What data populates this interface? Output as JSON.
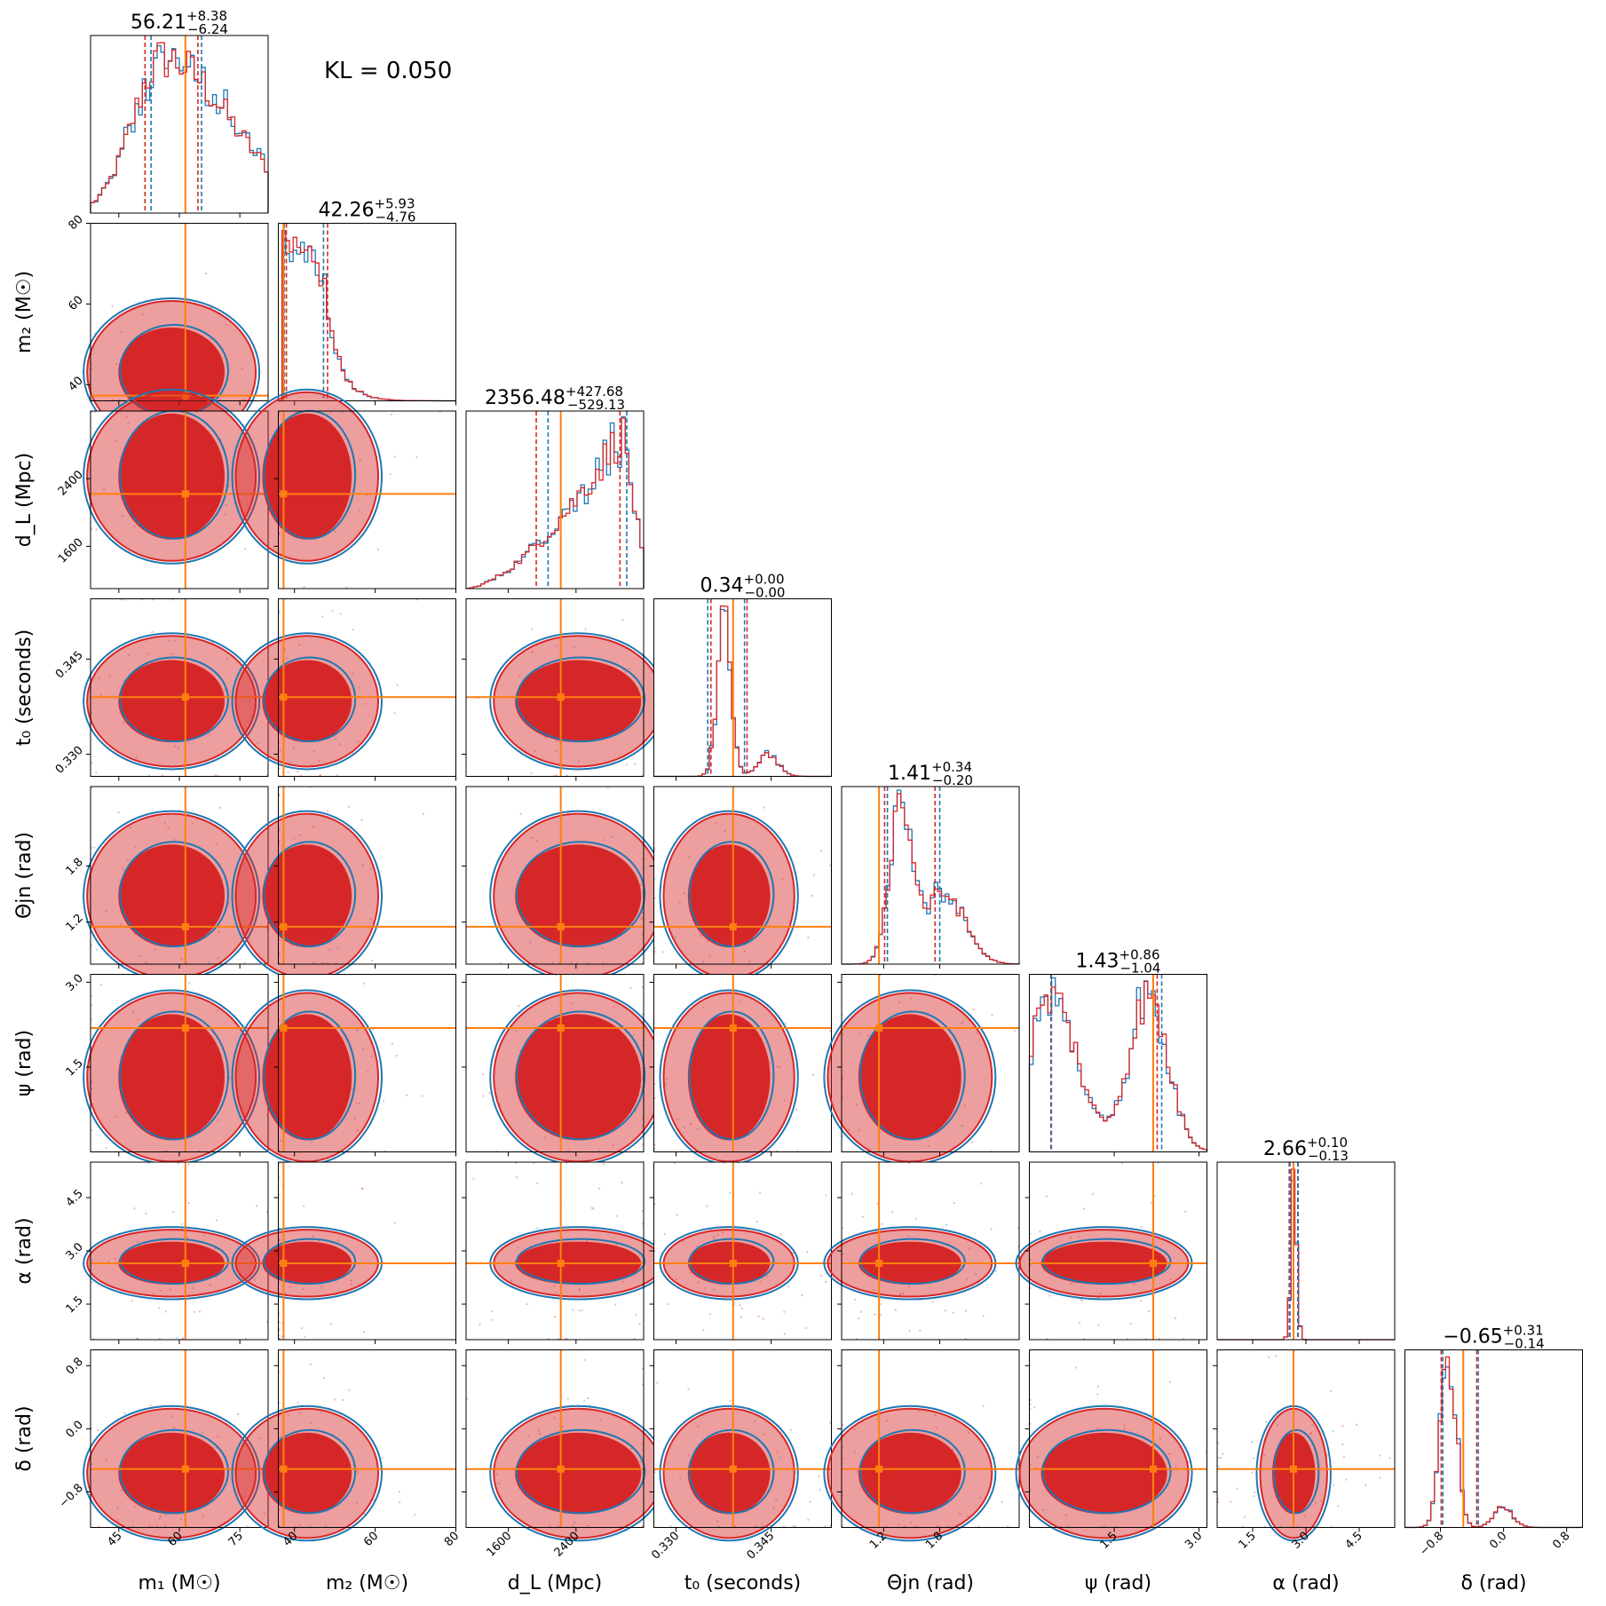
{
  "kl_text": "KL = 0.050",
  "chart_data": {
    "type": "corner",
    "colors": {
      "series_a": "#d62728",
      "series_b": "#1f77b4",
      "truth": "#ff7f0e"
    },
    "series": [
      {
        "name": "",
        "color": "#d62728"
      },
      {
        "name": "",
        "color": "#1f77b4"
      }
    ],
    "params": [
      {
        "key": "m1",
        "label": "m₁ (M☉)",
        "lim": [
          38,
          82
        ],
        "ticks": [
          45,
          60,
          75
        ],
        "ticklabels": [
          "45",
          "60",
          "75"
        ],
        "truth": 61.5,
        "title_median": "56.21",
        "title_plus": "+8.38",
        "title_minus": "−6.24",
        "q_red": [
          51.5,
          64.6
        ],
        "q_blue": [
          53.0,
          65.5
        ],
        "dist": {
          "kind": "gauss",
          "mu": 56,
          "sd": 7.5,
          "skew": 1.2
        }
      },
      {
        "key": "m2",
        "label": "m₂ (M☉)",
        "lim": [
          36,
          80
        ],
        "ticks": [
          40,
          60,
          80
        ],
        "ticklabels": [
          "40",
          "60",
          "80"
        ],
        "truth": 37.3,
        "title_median": "42.26",
        "title_plus": "+5.93",
        "title_minus": "−4.76",
        "q_red": [
          38.0,
          48.2
        ],
        "q_blue": [
          37.5,
          47.2
        ],
        "dist": {
          "kind": "decay",
          "start": 36.5,
          "knee": 47,
          "scale": 3.5
        }
      },
      {
        "key": "dL",
        "label": "d_L (Mpc)",
        "lim": [
          1100,
          3200
        ],
        "ticks": [
          1600,
          2400
        ],
        "ticklabels": [
          "1600",
          "2400"
        ],
        "truth": 2220,
        "title_median": "2356.48",
        "title_plus": "+427.68",
        "title_minus": "−529.13",
        "q_red": [
          1930,
          2920
        ],
        "q_blue": [
          2070,
          3000
        ],
        "dist": {
          "kind": "rise",
          "lo": 1100,
          "hi": 3200,
          "peak": 2950
        }
      },
      {
        "key": "t0",
        "label": "t₀ (seconds)",
        "lim": [
          0.3265,
          0.3545
        ],
        "ticks": [
          0.33,
          0.345
        ],
        "ticklabels": [
          "0.330",
          "0.345"
        ],
        "truth": 0.339,
        "title_median": "0.34",
        "title_plus": "+0.00",
        "title_minus": "−0.00",
        "q_red": [
          0.3355,
          0.3412
        ],
        "q_blue": [
          0.335,
          0.3408
        ],
        "dist": {
          "kind": "bimodal",
          "m1": 0.3376,
          "s1": 0.0011,
          "w1": 1.0,
          "m2": 0.3445,
          "s2": 0.0016,
          "w2": 0.14
        }
      },
      {
        "key": "theta",
        "label": "Θjn (rad)",
        "lim": [
          0.75,
          2.65
        ],
        "ticks": [
          1.2,
          1.8
        ],
        "ticklabels": [
          "1.2",
          "1.8"
        ],
        "truth": 1.15,
        "title_median": "1.41",
        "title_plus": "+0.34",
        "title_minus": "−0.20",
        "q_red": [
          1.21,
          1.75
        ],
        "q_blue": [
          1.24,
          1.8
        ],
        "dist": {
          "kind": "bimodal",
          "m1": 1.38,
          "s1": 0.12,
          "w1": 1.0,
          "m2": 1.85,
          "s2": 0.22,
          "w2": 0.45
        }
      },
      {
        "key": "psi",
        "label": "ψ (rad)",
        "lim": [
          0.0,
          3.14
        ],
        "ticks": [
          1.5,
          3.0
        ],
        "ticklabels": [
          "1.5",
          "3.0"
        ],
        "truth": 2.19,
        "title_median": "1.43",
        "title_plus": "+0.86",
        "title_minus": "−1.04",
        "q_red": [
          0.38,
          2.26
        ],
        "q_blue": [
          0.39,
          2.34
        ],
        "dist": {
          "kind": "bimodal",
          "m1": 0.4,
          "s1": 0.45,
          "w1": 1.0,
          "m2": 2.1,
          "s2": 0.35,
          "w2": 1.0
        }
      },
      {
        "key": "alpha",
        "label": "α (rad)",
        "lim": [
          0.5,
          5.5
        ],
        "ticks": [
          1.5,
          3.0,
          4.5
        ],
        "ticklabels": [
          "1.5",
          "3.0",
          "4.5"
        ],
        "truth": 2.65,
        "title_median": "2.66",
        "title_plus": "+0.10",
        "title_minus": "−0.13",
        "q_red": [
          2.53,
          2.78
        ],
        "q_blue": [
          2.55,
          2.77
        ],
        "dist": {
          "kind": "gauss",
          "mu": 2.66,
          "sd": 0.08,
          "skew": 0
        }
      },
      {
        "key": "delta",
        "label": "δ (rad)",
        "lim": [
          -1.25,
          1.0
        ],
        "ticks": [
          -0.8,
          0.0,
          0.8
        ],
        "ticklabels": [
          "−0.8",
          "0.0",
          "0.8"
        ],
        "truth": -0.51,
        "title_median": "−0.65",
        "title_plus": "+0.31",
        "title_minus": "−0.14",
        "q_red": [
          -0.79,
          -0.34
        ],
        "q_blue": [
          -0.77,
          -0.32
        ],
        "dist": {
          "kind": "bimodal",
          "m1": -0.7,
          "s1": 0.1,
          "w1": 1.0,
          "m2": 0.0,
          "s2": 0.12,
          "w2": 0.12
        }
      }
    ]
  }
}
